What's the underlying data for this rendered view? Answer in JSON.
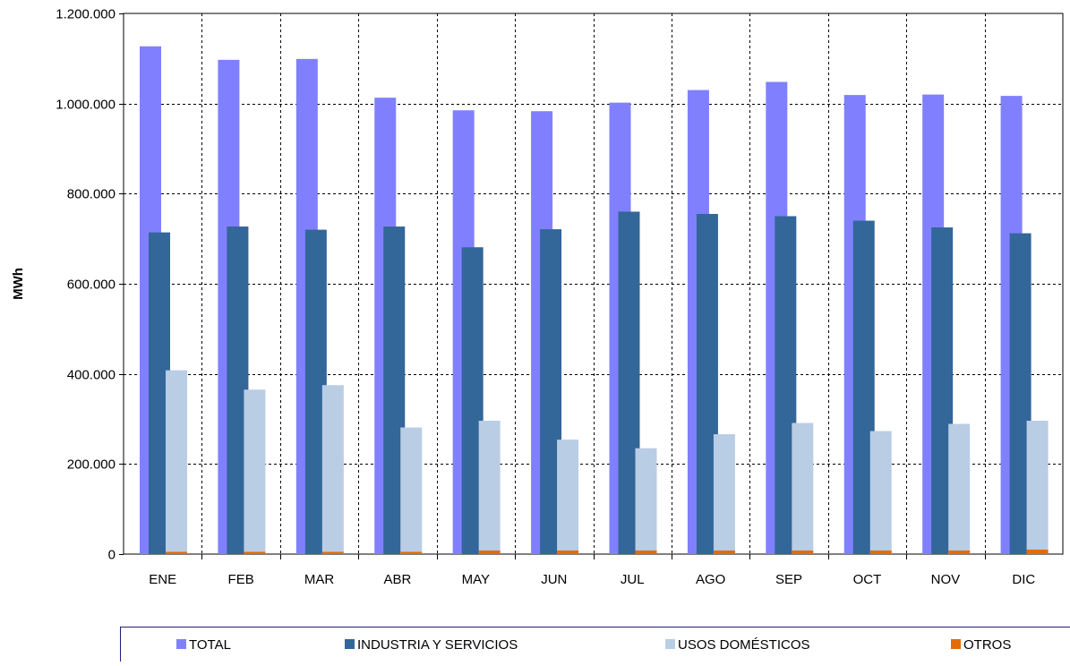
{
  "chart_data": {
    "type": "bar",
    "ylabel": "MWh",
    "xlabel": "",
    "title": "",
    "ylim": [
      0,
      1200000
    ],
    "y_ticks": [
      {
        "value": 0,
        "label": "0"
      },
      {
        "value": 200000,
        "label": "200.000"
      },
      {
        "value": 400000,
        "label": "400.000"
      },
      {
        "value": 600000,
        "label": "600.000"
      },
      {
        "value": 800000,
        "label": "800.000"
      },
      {
        "value": 1000000,
        "label": "1.000.000"
      },
      {
        "value": 1200000,
        "label": "1.200.000"
      }
    ],
    "categories": [
      "ENE",
      "FEB",
      "MAR",
      "ABR",
      "MAY",
      "JUN",
      "JUL",
      "AGO",
      "SEP",
      "OCT",
      "NOV",
      "DIC"
    ],
    "grid": true,
    "legend_position": "bottom",
    "series": [
      {
        "name": "TOTAL",
        "color": "#8080ff",
        "values": [
          1127000,
          1097000,
          1099000,
          1013000,
          985000,
          983000,
          1002000,
          1030000,
          1048000,
          1019000,
          1020000,
          1017000
        ]
      },
      {
        "name": "INDUSTRIA Y SERVICIOS",
        "color": "#336699",
        "values": [
          714000,
          727000,
          720000,
          727000,
          681000,
          721000,
          760000,
          755000,
          750000,
          740000,
          725000,
          712000
        ]
      },
      {
        "name": "USOS DOMÉSTICOS",
        "color": "#b9cde5",
        "values": [
          408000,
          365000,
          375000,
          281000,
          296000,
          254000,
          235000,
          266000,
          291000,
          273000,
          289000,
          296000
        ]
      },
      {
        "name": "OTROS",
        "color": "#e36c09",
        "values": [
          5000,
          5000,
          5000,
          5000,
          8000,
          8000,
          8000,
          8000,
          8000,
          8000,
          8000,
          10000
        ]
      }
    ]
  }
}
